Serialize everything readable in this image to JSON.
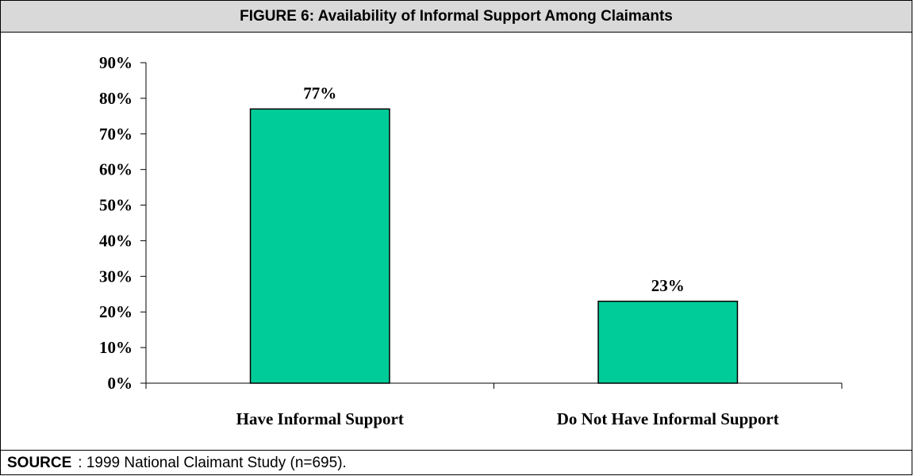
{
  "figure": {
    "title": "FIGURE 6: Availability of Informal Support Among Claimants",
    "source_label": "SOURCE",
    "source_text": ":  1999 National Claimant Study (n=695)."
  },
  "colors": {
    "bar_fill": "#00cc99",
    "bar_stroke": "#000000",
    "title_bg": "#d9d9d9"
  },
  "chart_data": {
    "type": "bar",
    "categories": [
      "Have Informal Support",
      "Do Not Have Informal Support"
    ],
    "values": [
      77,
      23
    ],
    "data_labels": [
      "77%",
      "23%"
    ],
    "ylim": [
      0,
      90
    ],
    "yticks": [
      0,
      10,
      20,
      30,
      40,
      50,
      60,
      70,
      80,
      90
    ],
    "ytick_labels": [
      "0%",
      "10%",
      "20%",
      "30%",
      "40%",
      "50%",
      "60%",
      "70%",
      "80%",
      "90%"
    ],
    "grid": false,
    "legend": "none"
  }
}
